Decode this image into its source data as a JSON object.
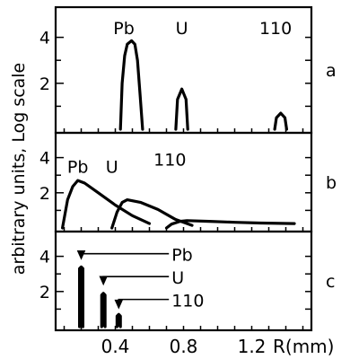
{
  "chart_data": {
    "type": "line",
    "ylabel": "arbitrary units, Log scale",
    "xlabel": "R(mm)",
    "x_tick_labels": [
      "0.4",
      "0.8",
      "1.2"
    ],
    "xlim": [
      0.05,
      1.55
    ],
    "line_color": "#000000",
    "panels": [
      {
        "label": "a",
        "ylim": [
          0,
          5
        ],
        "y_tick_labels": [
          "2",
          "4"
        ],
        "annotations": [
          {
            "text": "Pb",
            "x": 0.45,
            "y": 4.45
          },
          {
            "text": "U",
            "x": 0.79,
            "y": 4.45
          },
          {
            "text": "110",
            "x": 1.34,
            "y": 4.45
          }
        ],
        "series": [
          {
            "points": [
              [
                0.43,
                0
              ],
              [
                0.44,
                2.0
              ],
              [
                0.455,
                3.2
              ],
              [
                0.47,
                3.7
              ],
              [
                0.495,
                3.85
              ],
              [
                0.515,
                3.7
              ],
              [
                0.53,
                3.0
              ],
              [
                0.545,
                1.5
              ],
              [
                0.56,
                0
              ]
            ]
          },
          {
            "points": [
              [
                0.755,
                0
              ],
              [
                0.765,
                1.3
              ],
              [
                0.79,
                1.75
              ],
              [
                0.815,
                1.3
              ],
              [
                0.825,
                0
              ]
            ]
          },
          {
            "points": [
              [
                1.335,
                0
              ],
              [
                1.345,
                0.5
              ],
              [
                1.37,
                0.7
              ],
              [
                1.395,
                0.5
              ],
              [
                1.405,
                0
              ]
            ]
          }
        ]
      },
      {
        "label": "b",
        "ylim": [
          0,
          5
        ],
        "y_tick_labels": [
          "2",
          "4"
        ],
        "annotations": [
          {
            "text": "Pb",
            "x": 0.18,
            "y": 3.55
          },
          {
            "text": "U",
            "x": 0.38,
            "y": 3.55
          },
          {
            "text": "110",
            "x": 0.72,
            "y": 3.95
          }
        ],
        "series": [
          {
            "points": [
              [
                0.09,
                0
              ],
              [
                0.12,
                1.6
              ],
              [
                0.15,
                2.35
              ],
              [
                0.18,
                2.7
              ],
              [
                0.22,
                2.55
              ],
              [
                0.3,
                2.0
              ],
              [
                0.4,
                1.3
              ],
              [
                0.5,
                0.7
              ],
              [
                0.6,
                0.25
              ]
            ]
          },
          {
            "points": [
              [
                0.38,
                0
              ],
              [
                0.41,
                0.9
              ],
              [
                0.44,
                1.45
              ],
              [
                0.47,
                1.6
              ],
              [
                0.55,
                1.45
              ],
              [
                0.65,
                1.05
              ],
              [
                0.75,
                0.5
              ],
              [
                0.85,
                0.15
              ]
            ]
          },
          {
            "points": [
              [
                0.7,
                0
              ],
              [
                0.73,
                0.22
              ],
              [
                0.78,
                0.38
              ],
              [
                0.82,
                0.42
              ],
              [
                0.95,
                0.38
              ],
              [
                1.1,
                0.32
              ],
              [
                1.25,
                0.28
              ],
              [
                1.45,
                0.25
              ]
            ]
          }
        ]
      },
      {
        "label": "c",
        "ylim": [
          0,
          5
        ],
        "y_tick_labels": [
          "2",
          "4"
        ],
        "annotations": [
          {
            "text": "Pb",
            "x": 0.73,
            "y": 4.15,
            "arrow_to": [
              0.2,
              3.85
            ]
          },
          {
            "text": "U",
            "x": 0.73,
            "y": 2.85,
            "arrow_to": [
              0.33,
              2.4
            ]
          },
          {
            "text": "110",
            "x": 0.73,
            "y": 1.55,
            "arrow_to": [
              0.42,
              1.05
            ]
          }
        ],
        "series": [
          {
            "points": [
              [
                0.19,
                0
              ],
              [
                0.19,
                3.3
              ],
              [
                0.2,
                3.4
              ],
              [
                0.21,
                3.3
              ],
              [
                0.21,
                0
              ]
            ]
          },
          {
            "points": [
              [
                0.32,
                0
              ],
              [
                0.32,
                1.8
              ],
              [
                0.33,
                1.9
              ],
              [
                0.34,
                1.8
              ],
              [
                0.34,
                0
              ]
            ]
          },
          {
            "points": [
              [
                0.41,
                0
              ],
              [
                0.41,
                0.6
              ],
              [
                0.42,
                0.7
              ],
              [
                0.43,
                0.6
              ],
              [
                0.43,
                0
              ]
            ]
          }
        ]
      }
    ]
  }
}
